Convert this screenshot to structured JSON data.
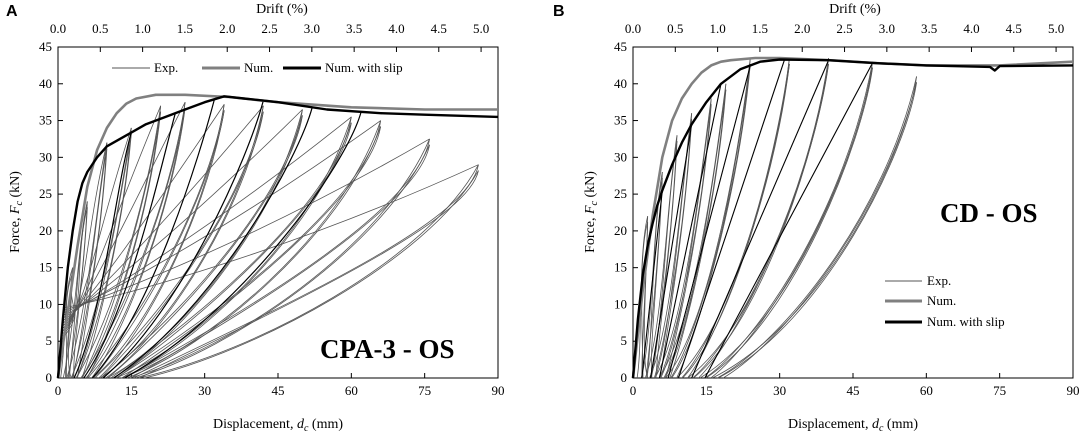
{
  "chart_data": [
    {
      "type": "line",
      "panel_label": "A",
      "annotation": "CPA-3 - OS",
      "xlabel": "Displacement, dc (mm)",
      "xlabel_parts": {
        "prefix": "Displacement, ",
        "var": "d",
        "sub": "c",
        "suffix": " (mm)"
      },
      "ylabel": "Force, Fc (kN)",
      "ylabel_parts": {
        "prefix": "Force, ",
        "var": "F",
        "sub": "c",
        "suffix": " (kN)"
      },
      "x2label": "Drift (%)",
      "xlim": [
        0,
        90
      ],
      "ylim": [
        0,
        45
      ],
      "x2lim": [
        0,
        5.2
      ],
      "xticks": [
        "0",
        "15",
        "30",
        "45",
        "60",
        "75",
        "90"
      ],
      "yticks": [
        "0",
        "5",
        "10",
        "15",
        "20",
        "25",
        "30",
        "35",
        "40",
        "45"
      ],
      "x2ticks": [
        "0.0",
        "0.5",
        "1.0",
        "1.5",
        "2.0",
        "2.5",
        "3.0",
        "3.5",
        "4.0",
        "4.5",
        "5.0"
      ],
      "legend_position": "top-center",
      "series": [
        {
          "name": "Exp.",
          "color": "#555555",
          "envelope_x": [
            0,
            3,
            6,
            10,
            15,
            21,
            26,
            34,
            42,
            50,
            60,
            66,
            76,
            86
          ],
          "envelope_y": [
            5,
            15,
            24,
            32,
            34,
            37,
            37.5,
            37.2,
            37,
            36.5,
            35.5,
            35,
            32.5,
            29
          ]
        },
        {
          "name": "Num.",
          "color": "#808080",
          "x": [
            0,
            2,
            4,
            6,
            8,
            10,
            12,
            14,
            16,
            20,
            26,
            35,
            45,
            60,
            75,
            90
          ],
          "y": [
            0,
            9,
            18,
            26,
            31,
            34,
            36,
            37.3,
            38,
            38.5,
            38.5,
            38.2,
            37.5,
            36.8,
            36.5,
            36.5
          ]
        },
        {
          "name": "Num. with slip",
          "color": "#000000",
          "x": [
            0,
            1,
            2,
            3,
            4,
            5,
            6,
            8,
            10,
            14,
            18,
            22,
            26,
            30,
            34,
            38,
            45,
            55,
            66,
            75,
            90
          ],
          "y": [
            0,
            8,
            15,
            20,
            24,
            26.5,
            28,
            30,
            31.5,
            33,
            34.5,
            35.5,
            36.5,
            37.5,
            38.3,
            38,
            37.5,
            36.5,
            36,
            35.8,
            35.5
          ]
        }
      ]
    },
    {
      "type": "line",
      "panel_label": "B",
      "annotation": "CD - OS",
      "xlabel": "Displacement, dc (mm)",
      "xlabel_parts": {
        "prefix": "Displacement, ",
        "var": "d",
        "sub": "c",
        "suffix": " (mm)"
      },
      "ylabel": "Force, Fc (kN)",
      "ylabel_parts": {
        "prefix": "Force, ",
        "var": "F",
        "sub": "c",
        "suffix": " (kN)"
      },
      "x2label": "Drift (%)",
      "xlim": [
        0,
        90
      ],
      "ylim": [
        0,
        45
      ],
      "x2lim": [
        0,
        5.2
      ],
      "xticks": [
        "0",
        "15",
        "30",
        "45",
        "60",
        "75",
        "90"
      ],
      "yticks": [
        "0",
        "5",
        "10",
        "15",
        "20",
        "25",
        "30",
        "35",
        "40",
        "45"
      ],
      "x2ticks": [
        "0.0",
        "0.5",
        "1.0",
        "1.5",
        "2.0",
        "2.5",
        "3.0",
        "3.5",
        "4.0",
        "4.5",
        "5.0"
      ],
      "legend_position": "center-right",
      "series": [
        {
          "name": "Exp.",
          "color": "#555555",
          "envelope_x": [
            0,
            3,
            6,
            9,
            12,
            16,
            19,
            24,
            32,
            40,
            49,
            58
          ],
          "envelope_y": [
            8,
            22,
            28,
            33,
            36,
            38,
            40,
            43.5,
            43.5,
            43.5,
            43,
            41
          ]
        },
        {
          "name": "Num.",
          "color": "#808080",
          "x": [
            0,
            2,
            4,
            6,
            8,
            10,
            12,
            14,
            16,
            18,
            20,
            25,
            30,
            40,
            50,
            60,
            75,
            90
          ],
          "y": [
            0,
            12,
            22,
            30,
            35,
            38,
            40,
            41.5,
            42.5,
            43,
            43.2,
            43.5,
            43.5,
            43.2,
            42.8,
            42.5,
            42.5,
            43
          ]
        },
        {
          "name": "Num. with slip",
          "color": "#000000",
          "x": [
            0,
            1,
            2,
            3,
            4,
            5,
            6,
            8,
            10,
            12,
            15,
            18,
            22,
            26,
            30,
            40,
            50,
            60,
            73,
            74,
            75,
            90
          ],
          "y": [
            0,
            8,
            14,
            18,
            21,
            23.5,
            25.5,
            29,
            32,
            34.5,
            37.5,
            40,
            42,
            43,
            43.3,
            43.2,
            42.8,
            42.5,
            42.3,
            41.8,
            42.4,
            42.5
          ]
        }
      ]
    }
  ]
}
